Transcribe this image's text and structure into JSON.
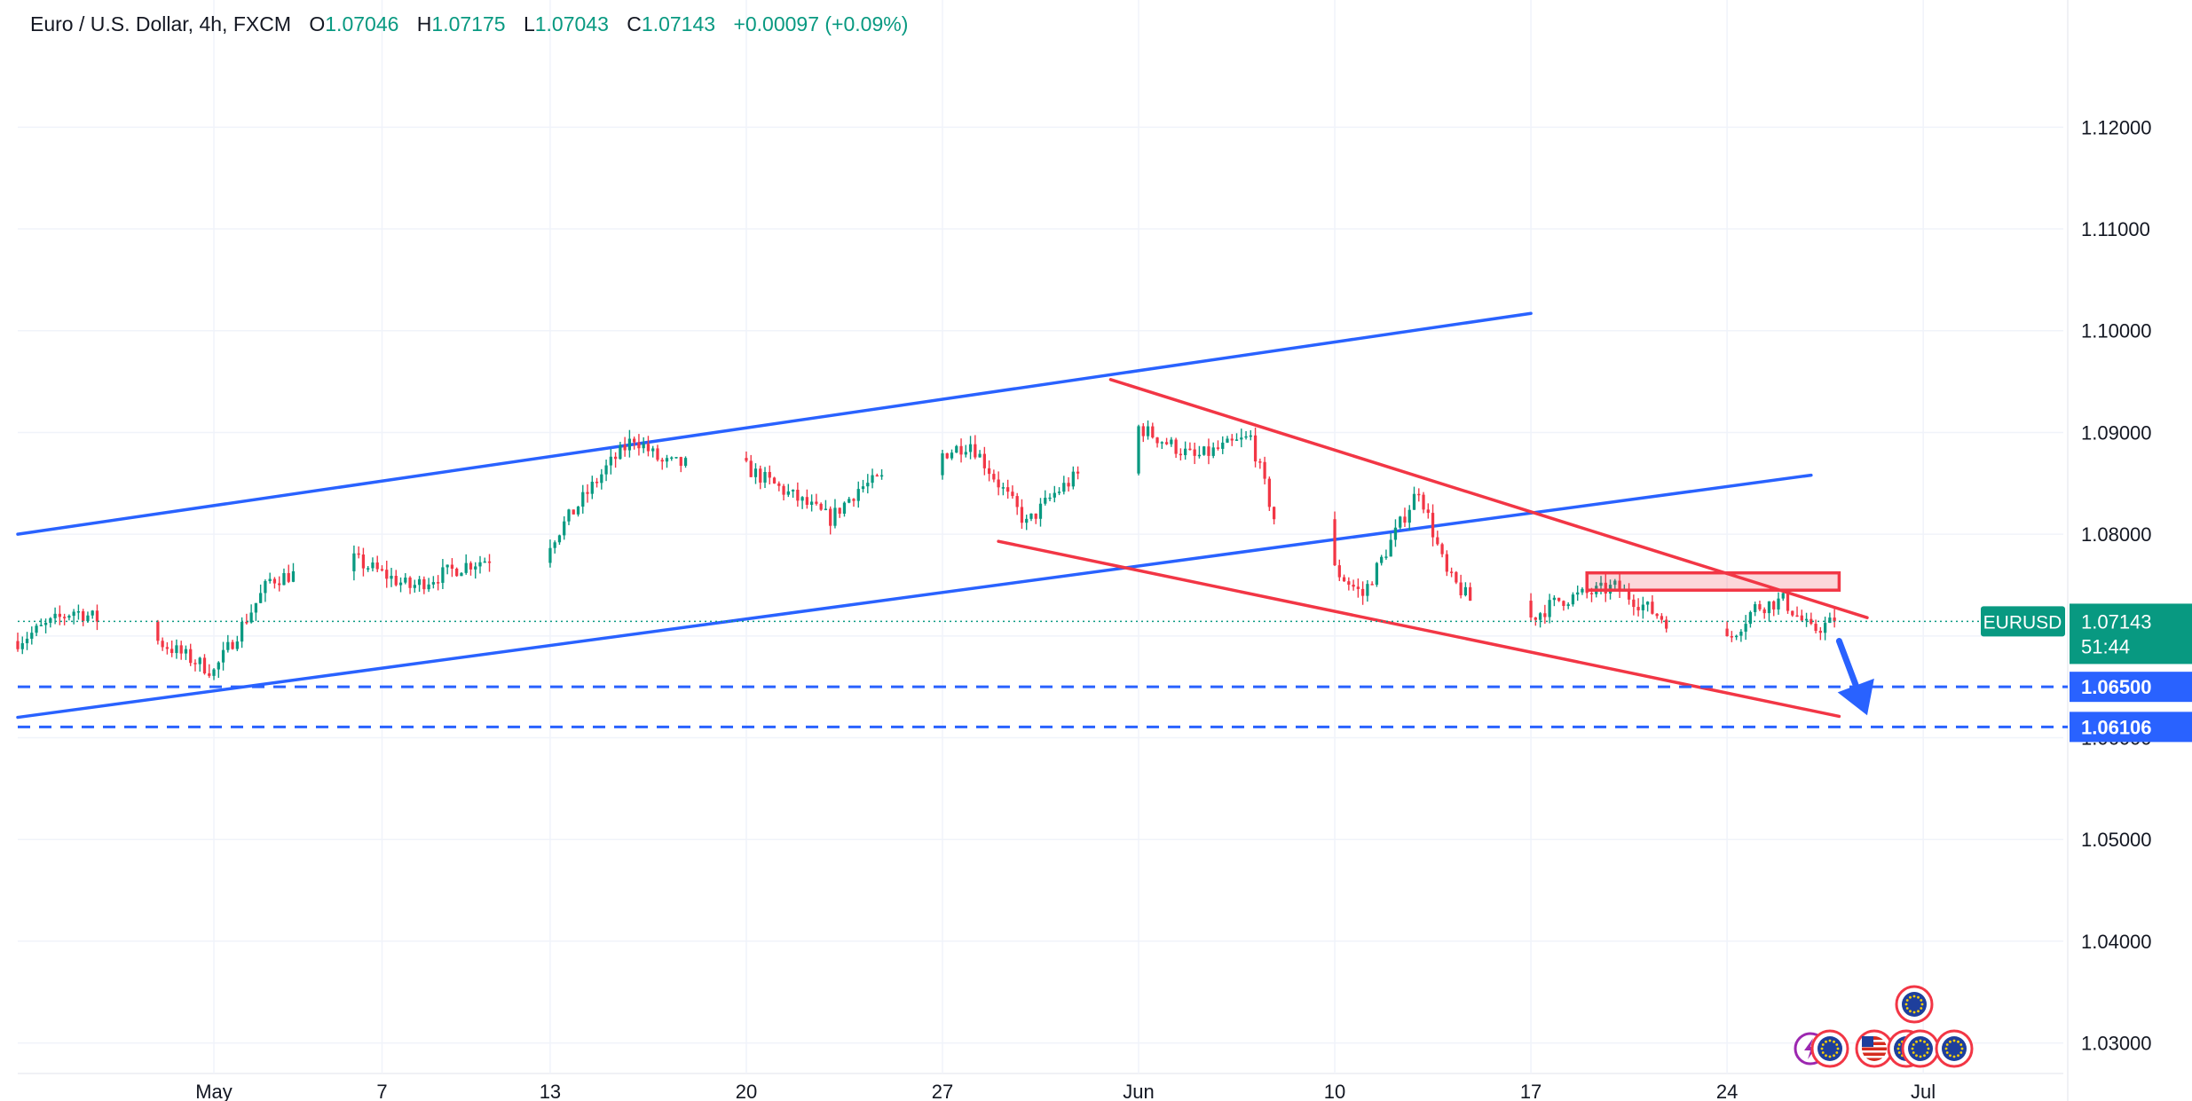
{
  "header": {
    "symbol": "Euro / U.S. Dollar, 4h, FXCM",
    "open_label": "O",
    "open": "1.07046",
    "high_label": "H",
    "high": "1.07175",
    "low_label": "L",
    "low": "1.07043",
    "close_label": "C",
    "close": "1.07143",
    "change": "+0.00097 (+0.09%)"
  },
  "price_tag": {
    "symbol": "EURUSD",
    "price": "1.07143",
    "countdown": "51:44",
    "color": "#089981"
  },
  "level_tags": [
    {
      "label": "1.06500",
      "value": 1.065,
      "color": "#2962ff"
    },
    {
      "label": "1.06106",
      "value": 1.06106,
      "color": "#2962ff"
    }
  ],
  "colors": {
    "up": "#089981",
    "down": "#f23645",
    "blue_line": "#2962ff",
    "red_line": "#f23645",
    "grid": "#f0f3fa"
  },
  "chart_data": {
    "type": "candlestick",
    "ylim": [
      1.027,
      1.1325
    ],
    "y_ticks": [
      {
        "value": 1.12,
        "label": "1.12000"
      },
      {
        "value": 1.11,
        "label": "1.11000"
      },
      {
        "value": 1.1,
        "label": "1.10000"
      },
      {
        "value": 1.09,
        "label": "1.09000"
      },
      {
        "value": 1.08,
        "label": "1.08000"
      },
      {
        "value": 1.07,
        "label": "1.07000"
      },
      {
        "value": 1.06,
        "label": "1.06000"
      },
      {
        "value": 1.05,
        "label": "1.05000"
      },
      {
        "value": 1.04,
        "label": "1.04000"
      },
      {
        "value": 1.03,
        "label": "1.03000"
      }
    ],
    "x_range": [
      "2024-04-24",
      "2024-07-06"
    ],
    "x_ticks": [
      {
        "date": "2024-05-01",
        "label": "May"
      },
      {
        "date": "2024-05-07",
        "label": "7"
      },
      {
        "date": "2024-05-13",
        "label": "13"
      },
      {
        "date": "2024-05-20",
        "label": "20"
      },
      {
        "date": "2024-05-27",
        "label": "27"
      },
      {
        "date": "2024-06-03",
        "label": "Jun"
      },
      {
        "date": "2024-06-10",
        "label": "10"
      },
      {
        "date": "2024-06-17",
        "label": "17"
      },
      {
        "date": "2024-06-24",
        "label": "24"
      },
      {
        "date": "2024-07-01",
        "label": "Jul"
      }
    ],
    "path_points": [
      [
        "2024-04-24",
        1.0695
      ],
      [
        "2024-04-26",
        1.0725
      ],
      [
        "2024-04-29",
        1.0695
      ],
      [
        "2024-05-01",
        1.0665
      ],
      [
        "2024-05-03",
        1.0755
      ],
      [
        "2024-05-06",
        1.0775
      ],
      [
        "2024-05-08",
        1.0748
      ],
      [
        "2024-05-10",
        1.077
      ],
      [
        "2024-05-13",
        1.0792
      ],
      [
        "2024-05-15",
        1.0865
      ],
      [
        "2024-05-16",
        1.0895
      ],
      [
        "2024-05-17",
        1.087
      ],
      [
        "2024-05-20",
        1.0865
      ],
      [
        "2024-05-23",
        1.0815
      ],
      [
        "2024-05-24",
        1.0845
      ],
      [
        "2024-05-28",
        1.089
      ],
      [
        "2024-05-30",
        1.081
      ],
      [
        "2024-05-31",
        1.084
      ],
      [
        "2024-06-03",
        1.0905
      ],
      [
        "2024-06-05",
        1.0875
      ],
      [
        "2024-06-07",
        1.0895
      ],
      [
        "2024-06-08",
        1.08
      ],
      [
        "2024-06-10",
        1.0765
      ],
      [
        "2024-06-11",
        1.074
      ],
      [
        "2024-06-13",
        1.0845
      ],
      [
        "2024-06-14",
        1.076
      ],
      [
        "2024-06-16",
        1.07
      ],
      [
        "2024-06-18",
        1.0735
      ],
      [
        "2024-06-20",
        1.0748
      ],
      [
        "2024-06-22",
        1.0712
      ],
      [
        "2024-06-24",
        1.0695
      ],
      [
        "2024-06-25",
        1.0728
      ],
      [
        "2024-06-26",
        1.0735
      ],
      [
        "2024-06-27",
        1.0705
      ],
      [
        "2024-06-27 20:00",
        1.07143
      ]
    ],
    "levels": [
      {
        "value": 1.065,
        "style": "dashed",
        "color": "#2962ff"
      },
      {
        "value": 1.06106,
        "style": "dashed",
        "color": "#2962ff"
      }
    ],
    "current_price": 1.07143,
    "trendlines": [
      {
        "color": "#2962ff",
        "start": [
          "2024-04-24",
          1.08
        ],
        "end": [
          "2024-06-17",
          1.1017
        ]
      },
      {
        "color": "#2962ff",
        "start": [
          "2024-04-24",
          1.062
        ],
        "end": [
          "2024-06-27",
          1.0858
        ]
      },
      {
        "color": "#f23645",
        "start": [
          "2024-06-02",
          1.0952
        ],
        "end": [
          "2024-06-29",
          1.0718
        ]
      },
      {
        "color": "#f23645",
        "start": [
          "2024-05-29",
          1.0793
        ],
        "end": [
          "2024-06-28",
          1.0621
        ]
      }
    ],
    "zones": [
      {
        "color": "#f23645",
        "x0": "2024-06-19",
        "x1": "2024-06-28",
        "y0": 1.0745,
        "y1": 1.0762
      }
    ],
    "arrow": {
      "color": "#2962ff",
      "start": [
        "2024-06-28",
        1.0695
      ],
      "end": [
        "2024-06-29",
        1.0622
      ]
    },
    "event_icons": {
      "top_row": [
        "EU"
      ],
      "bottom_row": [
        "lightning",
        "EU",
        "US",
        "EU",
        "EU",
        "EU"
      ]
    }
  }
}
